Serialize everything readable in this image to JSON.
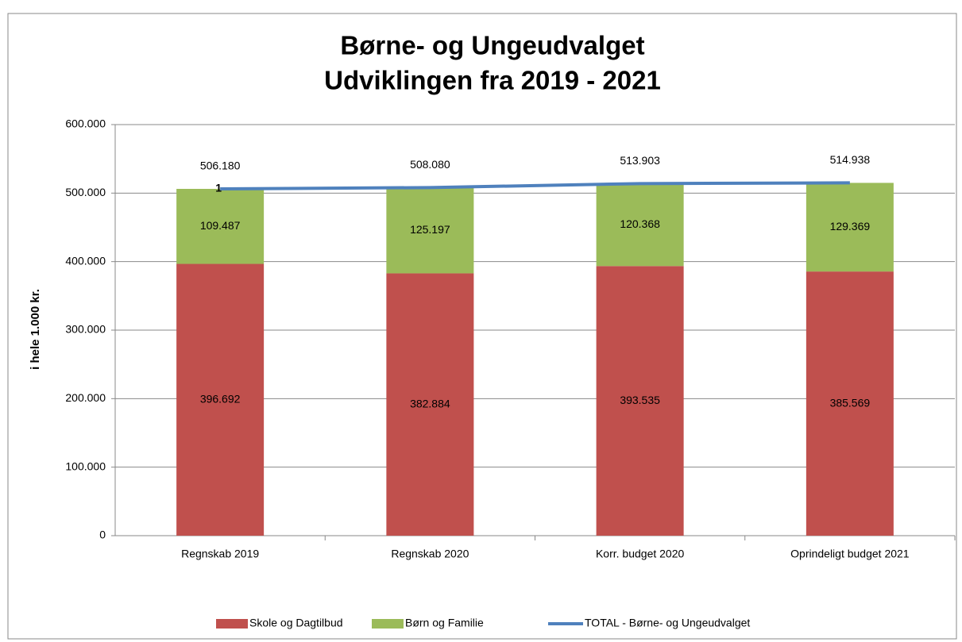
{
  "chart_data": {
    "type": "bar",
    "title": [
      "Børne- og Ungeudvalget",
      "Udviklingen fra 2019 - 2021"
    ],
    "y_label": "i hele 1.000 kr.",
    "categories": [
      "Regnskab 2019",
      "Regnskab 2020",
      "Korr. budget 2020",
      "Oprindeligt budget 2021"
    ],
    "stacked": true,
    "series": [
      {
        "name": "Skole og Dagtilbud",
        "color": "#c0504d",
        "values": [
          396692,
          382884,
          393535,
          385569
        ],
        "value_labels": [
          "396.692",
          "382.884",
          "393.535",
          "385.569"
        ]
      },
      {
        "name": "Børn og Familie",
        "color": "#9bbb59",
        "values": [
          109487,
          125197,
          120368,
          129369
        ],
        "value_labels": [
          "109.487",
          "125.197",
          "120.368",
          "129.369"
        ]
      },
      {
        "name": "TOTAL - Børne- og Ungeudvalget",
        "color": "#4f81bd",
        "type": "line",
        "values": [
          506180,
          508080,
          513903,
          514938
        ],
        "value_labels": [
          "506.180",
          "508.080",
          "513.903",
          "514.938"
        ]
      }
    ],
    "annotation": "1",
    "ylim": [
      0,
      600000
    ],
    "yticks": [
      0,
      {
        "value": 100000,
        "label": "100.000"
      },
      {
        "value": 200000,
        "label": "200.000"
      },
      {
        "value": 300000,
        "label": "300.000"
      },
      {
        "value": 400000,
        "label": "400.000"
      },
      {
        "value": 500000,
        "label": "500.000"
      },
      {
        "value": 600000,
        "label": "600.000"
      }
    ],
    "grid": true,
    "legend": "bottom"
  }
}
